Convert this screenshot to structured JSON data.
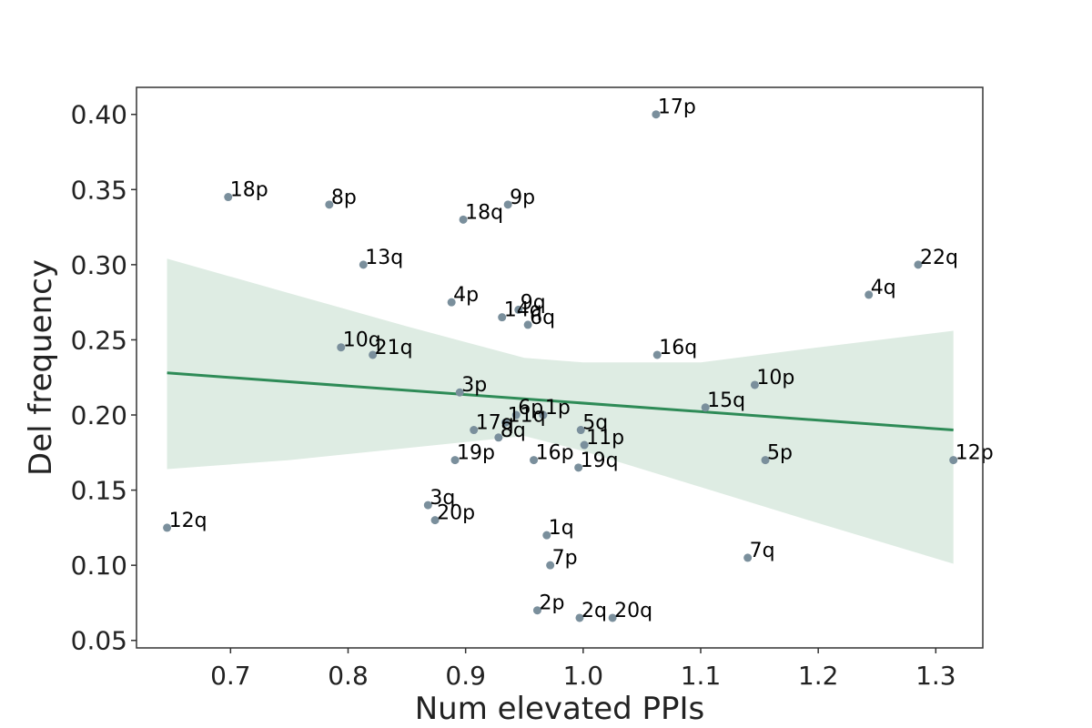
{
  "chart_data": {
    "type": "scatter",
    "xlabel": "Num elevated PPIs",
    "ylabel": "Del frequency",
    "xlim": [
      0.62,
      1.34
    ],
    "ylim": [
      0.045,
      0.418
    ],
    "x_ticks": [
      0.7,
      0.8,
      0.9,
      1.0,
      1.1,
      1.2,
      1.3
    ],
    "x_tick_labels": [
      "0.7",
      "0.8",
      "0.9",
      "1.0",
      "1.1",
      "1.2",
      "1.3"
    ],
    "y_ticks": [
      0.05,
      0.1,
      0.15,
      0.2,
      0.25,
      0.3,
      0.35,
      0.4
    ],
    "y_tick_labels": [
      "0.05",
      "0.10",
      "0.15",
      "0.20",
      "0.25",
      "0.30",
      "0.35",
      "0.40"
    ],
    "grid": false,
    "point_color": "#7a8f9c",
    "regression": {
      "color": "#2e8b57",
      "band_color": "#deece3",
      "x_start": 0.646,
      "x_end": 1.315,
      "y_start": 0.228,
      "y_end": 0.19,
      "band_upper": [
        [
          0.646,
          0.304
        ],
        [
          0.75,
          0.281
        ],
        [
          0.85,
          0.259
        ],
        [
          0.95,
          0.238
        ],
        [
          1.0,
          0.235
        ],
        [
          1.1,
          0.235
        ],
        [
          1.2,
          0.245
        ],
        [
          1.315,
          0.256
        ]
      ],
      "band_lower": [
        [
          0.646,
          0.164
        ],
        [
          0.75,
          0.17
        ],
        [
          0.85,
          0.178
        ],
        [
          0.95,
          0.186
        ],
        [
          1.0,
          0.176
        ],
        [
          1.1,
          0.152
        ],
        [
          1.2,
          0.128
        ],
        [
          1.315,
          0.101
        ]
      ]
    },
    "points": [
      {
        "label": "17p",
        "x": 1.062,
        "y": 0.4
      },
      {
        "label": "18p",
        "x": 0.698,
        "y": 0.345
      },
      {
        "label": "8p",
        "x": 0.784,
        "y": 0.34
      },
      {
        "label": "9p",
        "x": 0.936,
        "y": 0.34
      },
      {
        "label": "18q",
        "x": 0.898,
        "y": 0.33
      },
      {
        "label": "13q",
        "x": 0.813,
        "y": 0.3
      },
      {
        "label": "22q",
        "x": 1.285,
        "y": 0.3
      },
      {
        "label": "4q",
        "x": 1.243,
        "y": 0.28
      },
      {
        "label": "4p",
        "x": 0.888,
        "y": 0.275
      },
      {
        "label": "9q",
        "x": 0.945,
        "y": 0.27
      },
      {
        "label": "14q",
        "x": 0.931,
        "y": 0.265
      },
      {
        "label": "6q",
        "x": 0.953,
        "y": 0.26
      },
      {
        "label": "10q",
        "x": 0.794,
        "y": 0.245
      },
      {
        "label": "21q",
        "x": 0.821,
        "y": 0.24
      },
      {
        "label": "16q",
        "x": 1.063,
        "y": 0.24
      },
      {
        "label": "10p",
        "x": 1.146,
        "y": 0.22
      },
      {
        "label": "3p",
        "x": 0.895,
        "y": 0.215
      },
      {
        "label": "15q",
        "x": 1.104,
        "y": 0.205
      },
      {
        "label": "6p",
        "x": 0.943,
        "y": 0.2
      },
      {
        "label": "1p",
        "x": 0.966,
        "y": 0.2
      },
      {
        "label": "11q",
        "x": 0.934,
        "y": 0.195
      },
      {
        "label": "17q",
        "x": 0.907,
        "y": 0.19
      },
      {
        "label": "5q",
        "x": 0.998,
        "y": 0.19
      },
      {
        "label": "8q",
        "x": 0.928,
        "y": 0.185
      },
      {
        "label": "11p",
        "x": 1.001,
        "y": 0.18
      },
      {
        "label": "19p",
        "x": 0.891,
        "y": 0.17
      },
      {
        "label": "16p",
        "x": 0.958,
        "y": 0.17
      },
      {
        "label": "5p",
        "x": 1.155,
        "y": 0.17
      },
      {
        "label": "12p",
        "x": 1.315,
        "y": 0.17
      },
      {
        "label": "19q",
        "x": 0.996,
        "y": 0.165
      },
      {
        "label": "3q",
        "x": 0.868,
        "y": 0.14
      },
      {
        "label": "20p",
        "x": 0.874,
        "y": 0.13
      },
      {
        "label": "12q",
        "x": 0.646,
        "y": 0.125
      },
      {
        "label": "1q",
        "x": 0.969,
        "y": 0.12
      },
      {
        "label": "7q",
        "x": 1.14,
        "y": 0.105
      },
      {
        "label": "7p",
        "x": 0.972,
        "y": 0.1
      },
      {
        "label": "2p",
        "x": 0.961,
        "y": 0.07
      },
      {
        "label": "2q",
        "x": 0.997,
        "y": 0.065
      },
      {
        "label": "20q",
        "x": 1.025,
        "y": 0.065
      }
    ]
  }
}
